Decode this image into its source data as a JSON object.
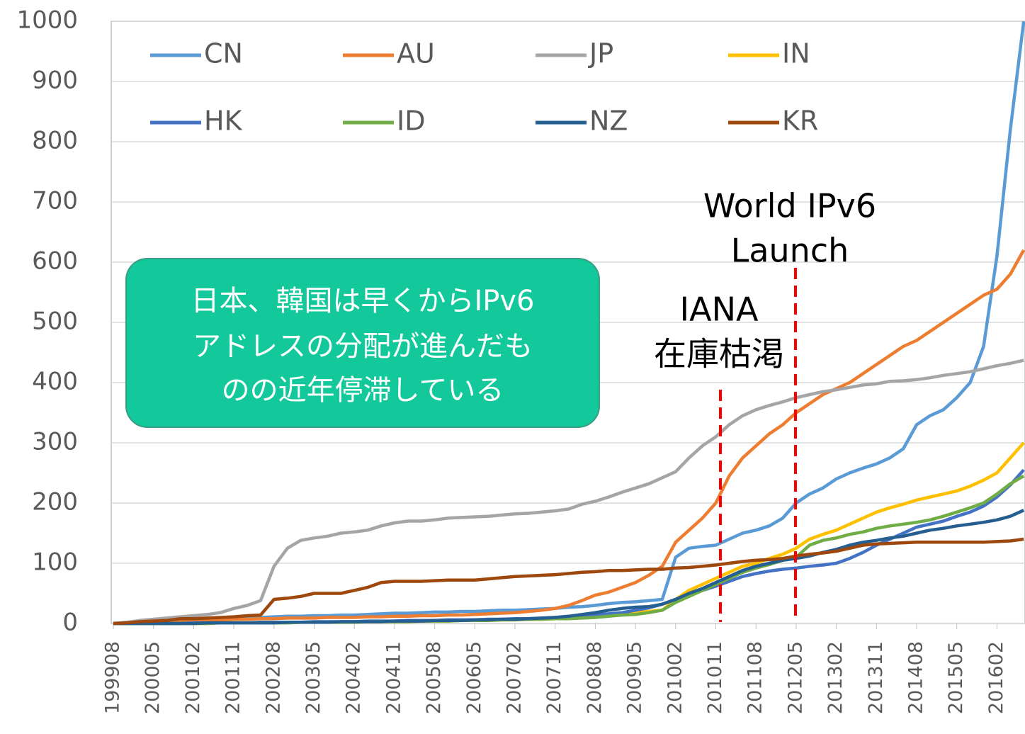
{
  "chart_data": {
    "type": "line",
    "categories": [
      "199908",
      null,
      null,
      "200005",
      null,
      null,
      "200102",
      null,
      null,
      "200111",
      null,
      null,
      "200208",
      null,
      null,
      "200305",
      null,
      null,
      "200402",
      null,
      null,
      "200411",
      null,
      null,
      "200508",
      null,
      null,
      "200605",
      null,
      null,
      "200702",
      null,
      null,
      "200711",
      null,
      null,
      "200808",
      null,
      null,
      "200905",
      null,
      null,
      "201002",
      null,
      null,
      "201011",
      null,
      null,
      "201108",
      null,
      null,
      "201205",
      null,
      null,
      "201302",
      null,
      null,
      "201311",
      null,
      null,
      "201408",
      null,
      null,
      "201505",
      null,
      null,
      "201602",
      null,
      null
    ],
    "ylim": [
      0,
      1000
    ],
    "yticks": [
      0,
      100,
      200,
      300,
      400,
      500,
      600,
      700,
      800,
      900,
      1000
    ],
    "grid": true,
    "series": [
      {
        "name": "CN",
        "color": "#5b9bd5",
        "values": [
          0,
          1,
          2,
          3,
          4,
          5,
          6,
          7,
          8,
          9,
          10,
          10,
          11,
          12,
          12,
          13,
          13,
          14,
          14,
          15,
          16,
          17,
          17,
          18,
          19,
          19,
          20,
          20,
          21,
          22,
          22,
          23,
          24,
          25,
          27,
          28,
          30,
          33,
          35,
          36,
          38,
          40,
          110,
          125,
          128,
          130,
          140,
          150,
          155,
          162,
          175,
          200,
          215,
          225,
          240,
          250,
          258,
          265,
          275,
          290,
          330,
          345,
          355,
          375,
          400,
          460,
          610,
          820,
          1000
        ]
      },
      {
        "name": "AU",
        "color": "#ed7d31",
        "values": [
          0,
          1,
          2,
          3,
          4,
          5,
          5,
          6,
          6,
          7,
          7,
          8,
          8,
          9,
          9,
          9,
          10,
          10,
          10,
          11,
          11,
          12,
          12,
          13,
          13,
          14,
          14,
          15,
          16,
          17,
          18,
          20,
          22,
          25,
          30,
          38,
          47,
          52,
          60,
          68,
          80,
          95,
          135,
          155,
          175,
          200,
          245,
          275,
          295,
          315,
          330,
          350,
          365,
          380,
          390,
          400,
          415,
          430,
          445,
          460,
          470,
          485,
          500,
          515,
          530,
          545,
          555,
          580,
          620
        ]
      },
      {
        "name": "JP",
        "color": "#a5a5a5",
        "values": [
          0,
          2,
          5,
          7,
          9,
          11,
          13,
          15,
          18,
          25,
          30,
          38,
          95,
          125,
          138,
          142,
          145,
          150,
          152,
          155,
          162,
          167,
          170,
          170,
          172,
          175,
          176,
          177,
          178,
          180,
          182,
          183,
          185,
          187,
          190,
          198,
          203,
          210,
          218,
          225,
          232,
          242,
          252,
          275,
          295,
          310,
          330,
          345,
          355,
          362,
          368,
          375,
          380,
          385,
          388,
          392,
          396,
          398,
          402,
          403,
          405,
          408,
          412,
          415,
          418,
          423,
          428,
          432,
          437
        ]
      },
      {
        "name": "IN",
        "color": "#ffc000",
        "values": [
          0,
          0,
          0,
          0,
          0,
          0,
          0,
          0,
          1,
          1,
          1,
          1,
          1,
          1,
          2,
          2,
          2,
          2,
          2,
          3,
          3,
          3,
          3,
          4,
          4,
          4,
          5,
          5,
          5,
          6,
          6,
          7,
          7,
          8,
          9,
          10,
          12,
          14,
          16,
          18,
          20,
          22,
          40,
          55,
          65,
          75,
          85,
          95,
          100,
          108,
          115,
          125,
          140,
          148,
          155,
          165,
          175,
          185,
          192,
          198,
          205,
          210,
          215,
          220,
          228,
          238,
          250,
          275,
          300
        ]
      },
      {
        "name": "HK",
        "color": "#4472c4",
        "values": [
          0,
          0,
          0,
          0,
          0,
          0,
          1,
          1,
          1,
          1,
          1,
          2,
          2,
          2,
          2,
          3,
          3,
          3,
          3,
          4,
          4,
          4,
          5,
          5,
          5,
          6,
          6,
          6,
          7,
          7,
          8,
          8,
          9,
          10,
          11,
          12,
          14,
          16,
          18,
          22,
          26,
          32,
          40,
          48,
          55,
          62,
          70,
          78,
          83,
          87,
          90,
          92,
          95,
          97,
          100,
          108,
          118,
          130,
          140,
          150,
          160,
          165,
          170,
          178,
          185,
          195,
          210,
          230,
          255
        ]
      },
      {
        "name": "ID",
        "color": "#70ad47",
        "values": [
          0,
          0,
          0,
          0,
          0,
          0,
          0,
          0,
          1,
          1,
          1,
          1,
          1,
          1,
          2,
          2,
          2,
          2,
          2,
          3,
          3,
          3,
          3,
          4,
          4,
          4,
          5,
          5,
          5,
          6,
          6,
          7,
          7,
          8,
          8,
          9,
          10,
          12,
          14,
          15,
          18,
          22,
          35,
          45,
          55,
          65,
          75,
          85,
          92,
          98,
          105,
          110,
          130,
          138,
          142,
          148,
          152,
          158,
          162,
          165,
          168,
          172,
          178,
          185,
          192,
          200,
          215,
          232,
          245
        ]
      },
      {
        "name": "NZ",
        "color": "#255e91",
        "values": [
          0,
          0,
          0,
          0,
          0,
          0,
          0,
          1,
          1,
          1,
          1,
          1,
          1,
          2,
          2,
          2,
          2,
          3,
          3,
          3,
          3,
          4,
          4,
          4,
          5,
          5,
          5,
          6,
          6,
          7,
          7,
          8,
          9,
          10,
          12,
          15,
          18,
          22,
          25,
          27,
          28,
          32,
          40,
          50,
          58,
          68,
          78,
          88,
          95,
          100,
          105,
          108,
          112,
          118,
          123,
          130,
          135,
          138,
          142,
          145,
          150,
          155,
          158,
          162,
          165,
          168,
          172,
          178,
          188
        ]
      },
      {
        "name": "KR",
        "color": "#9e480e",
        "values": [
          0,
          1,
          3,
          4,
          5,
          8,
          8,
          9,
          10,
          11,
          13,
          14,
          40,
          42,
          45,
          50,
          50,
          50,
          55,
          60,
          68,
          70,
          70,
          70,
          71,
          72,
          72,
          72,
          74,
          76,
          78,
          79,
          80,
          81,
          83,
          85,
          86,
          88,
          88,
          89,
          90,
          90,
          92,
          93,
          95,
          97,
          100,
          103,
          105,
          106,
          108,
          112,
          115,
          117,
          120,
          125,
          130,
          132,
          133,
          134,
          135,
          135,
          135,
          135,
          135,
          135,
          136,
          137,
          140
        ]
      }
    ],
    "annotations": {
      "world_ipv6": [
        "World IPv6",
        "Launch"
      ],
      "iana": [
        "IANA",
        "在庫枯渇"
      ],
      "note": [
        "日本、韓国は早くからIPv6",
        "アドレスの分配が進んだも",
        "のの近年停滞している"
      ]
    }
  }
}
